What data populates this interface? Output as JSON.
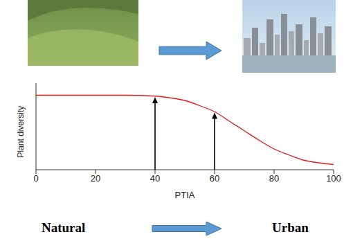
{
  "chart_data": {
    "type": "line",
    "x_label": "PTIA",
    "y_label": "Plant diversity",
    "x": [
      0,
      10,
      20,
      30,
      40,
      45,
      50,
      55,
      60,
      65,
      70,
      75,
      80,
      85,
      90,
      95,
      100
    ],
    "values": [
      0.86,
      0.86,
      0.86,
      0.86,
      0.85,
      0.83,
      0.8,
      0.74,
      0.67,
      0.56,
      0.45,
      0.34,
      0.24,
      0.17,
      0.11,
      0.08,
      0.06
    ],
    "color": "#e31a1c",
    "xlim": [
      0,
      100
    ],
    "xticks": [
      0,
      20,
      40,
      60,
      80,
      100
    ],
    "ylim": [
      0,
      1
    ],
    "tick_labels": "x",
    "arrows": [
      {
        "x": 40,
        "y": 0.84
      },
      {
        "x": 60,
        "y": 0.66
      }
    ],
    "annotations": [
      "Natural",
      "Urban"
    ]
  }
}
